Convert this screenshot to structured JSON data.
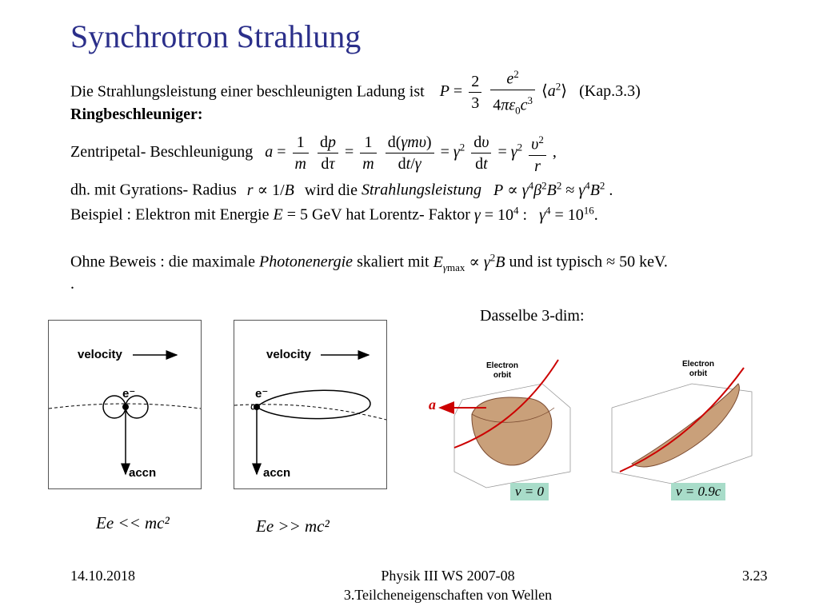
{
  "slide": {
    "title": "Synchrotron Strahlung",
    "radiation_intro": "Die Strahlungsleistung einer beschleunigten Ladung ist",
    "radiation_ref": "(Kap.3.3)",
    "ring_heading": "Ringbeschleuniger:",
    "centripetal_label": "Zentripetal- Beschleunigung",
    "gyration_intro": "dh. mit Gyrations- Radius",
    "gyration_mid": "wird die",
    "gyration_term": "Strahlungsleistung",
    "example_intro": "Beispiel : Elektron mit Energie",
    "example_mid": "hat Lorentz- Faktor",
    "photon_intro": "Ohne Beweis : die maximale",
    "photon_term": "Photonenergie",
    "photon_mid": "skaliert mit",
    "photon_end": "und ist typisch",
    "photon_value": "≈ 50 keV.",
    "dot": ".",
    "dasselbe": "Dasselbe 3-dim:"
  },
  "figures": {
    "velocity_label": "velocity",
    "accn_label": "accn",
    "electron_label": "e⁻",
    "orbit_label_line1": "Electron",
    "orbit_label_line2": "orbit",
    "a_label": "a",
    "v_zero": "v = 0",
    "v_relativistic": "v = 0.9c",
    "caption_low": "Ee << mc²",
    "caption_high": "Ee >> mc²"
  },
  "footer": {
    "date": "14.10.2018",
    "course_line1": "Physik III WS 2007-08",
    "course_line2": "3.Teilcheneigenschaften von Wellen",
    "page": "3.23"
  },
  "colors": {
    "title": "#2b2f8a",
    "arrow_red": "#cc0000",
    "lobe": "#c9a07a",
    "green_label": "#a8dcc9"
  }
}
